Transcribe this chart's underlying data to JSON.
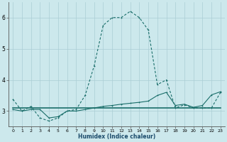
{
  "xlabel": "Humidex (Indice chaleur)",
  "xlim": [
    -0.5,
    23.5
  ],
  "ylim": [
    2.5,
    6.5
  ],
  "yticks": [
    3,
    4,
    5,
    6
  ],
  "xticks": [
    0,
    1,
    2,
    3,
    4,
    5,
    6,
    7,
    8,
    9,
    10,
    11,
    12,
    13,
    14,
    15,
    16,
    17,
    18,
    19,
    20,
    21,
    22,
    23
  ],
  "bg_color": "#cce8ec",
  "grid_color": "#aacdd4",
  "line_color": "#1a6e6a",
  "line1_x": [
    0,
    1,
    2,
    3,
    4,
    5,
    6,
    7,
    8,
    9,
    10,
    11,
    12,
    13,
    14,
    15,
    16,
    17,
    18,
    19,
    20,
    21,
    22,
    23
  ],
  "line1_y": [
    3.38,
    3.0,
    3.15,
    2.78,
    2.68,
    2.78,
    3.0,
    3.05,
    3.5,
    4.45,
    5.75,
    6.0,
    6.0,
    6.2,
    6.0,
    5.6,
    3.85,
    4.0,
    3.1,
    3.2,
    3.1,
    3.1,
    3.1,
    3.6
  ],
  "line2_x": [
    0,
    1,
    2,
    3,
    4,
    5,
    6,
    7,
    8,
    9,
    10,
    11,
    12,
    13,
    14,
    15,
    16,
    17,
    18,
    19,
    20,
    21,
    22,
    23
  ],
  "line2_y": [
    3.05,
    3.0,
    3.05,
    3.05,
    2.78,
    2.82,
    3.0,
    3.0,
    3.05,
    3.1,
    3.15,
    3.18,
    3.22,
    3.25,
    3.28,
    3.32,
    3.5,
    3.6,
    3.18,
    3.22,
    3.12,
    3.18,
    3.52,
    3.62
  ],
  "line3_x": [
    0,
    1,
    2,
    3,
    4,
    5,
    6,
    7,
    8,
    9,
    10,
    11,
    12,
    13,
    14,
    15,
    16,
    17,
    18,
    19,
    20,
    21,
    22,
    23
  ],
  "line3_y": [
    3.1,
    3.1,
    3.1,
    3.1,
    3.1,
    3.1,
    3.1,
    3.1,
    3.1,
    3.1,
    3.1,
    3.1,
    3.1,
    3.1,
    3.1,
    3.1,
    3.1,
    3.1,
    3.1,
    3.1,
    3.1,
    3.1,
    3.1,
    3.1
  ]
}
